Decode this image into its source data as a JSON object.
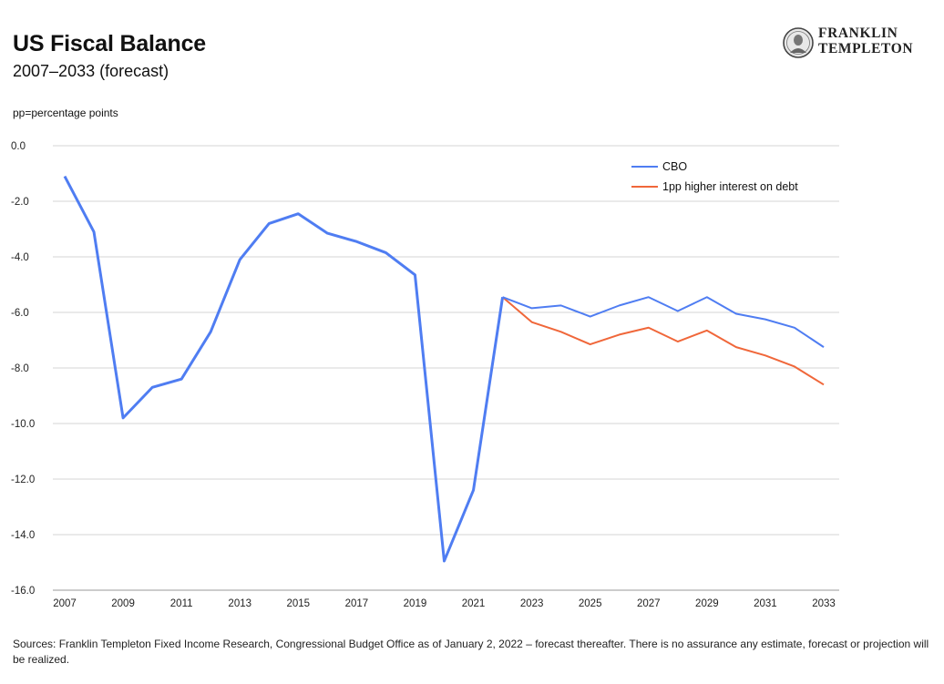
{
  "header": {
    "title": "US Fiscal Balance",
    "subtitle": "2007–2033 (forecast)",
    "note": "pp=percentage points"
  },
  "logo": {
    "line1": "FRANKLIN",
    "line2": "TEMPLETON",
    "icon": "franklin-portrait-seal"
  },
  "footer": {
    "source": "Sources: Franklin Templeton Fixed Income Research, Congressional Budget Office as of January 2, 2022 – forecast thereafter. There is no assurance any estimate, forecast or projection will be realized."
  },
  "chart_data": {
    "type": "line",
    "title": "US Fiscal Balance",
    "subtitle": "2007–2033 (forecast)",
    "xlabel": "",
    "ylabel": "",
    "ylim": [
      -16,
      0
    ],
    "xlim": [
      2007,
      2033
    ],
    "yticks": [
      0,
      -2,
      -4,
      -6,
      -8,
      -10,
      -12,
      -14,
      -16
    ],
    "ytick_labels": [
      "0.0",
      "-2.0",
      "-4.0",
      "-6.0",
      "-8.0",
      "-10.0",
      "-12.0",
      "-14.0",
      "-16.0"
    ],
    "xticks": [
      2007,
      2009,
      2011,
      2013,
      2015,
      2017,
      2019,
      2021,
      2023,
      2025,
      2027,
      2029,
      2031,
      2033
    ],
    "grid": "horizontal",
    "legend_position": "top-right",
    "series": [
      {
        "name": "CBO",
        "color": "#4f7df2",
        "x": [
          2007,
          2008,
          2009,
          2010,
          2011,
          2012,
          2013,
          2014,
          2015,
          2016,
          2017,
          2018,
          2019,
          2020,
          2021,
          2022,
          2023,
          2024,
          2025,
          2026,
          2027,
          2028,
          2029,
          2030,
          2031,
          2032,
          2033
        ],
        "values": [
          -1.1,
          -3.1,
          -9.8,
          -8.7,
          -8.4,
          -6.7,
          -4.1,
          -2.8,
          -2.45,
          -3.15,
          -3.45,
          -3.85,
          -4.65,
          -14.95,
          -12.4,
          -5.45,
          -5.85,
          -5.75,
          -6.15,
          -5.75,
          -5.45,
          -5.95,
          -5.45,
          -6.05,
          -6.25,
          -6.55,
          -7.25
        ]
      },
      {
        "name": "1pp higher interest on debt",
        "color": "#f0673a",
        "x": [
          2022,
          2023,
          2024,
          2025,
          2026,
          2027,
          2028,
          2029,
          2030,
          2031,
          2032,
          2033
        ],
        "values": [
          -5.45,
          -6.35,
          -6.7,
          -7.15,
          -6.8,
          -6.55,
          -7.05,
          -6.65,
          -7.25,
          -7.55,
          -7.95,
          -8.6
        ]
      }
    ]
  }
}
